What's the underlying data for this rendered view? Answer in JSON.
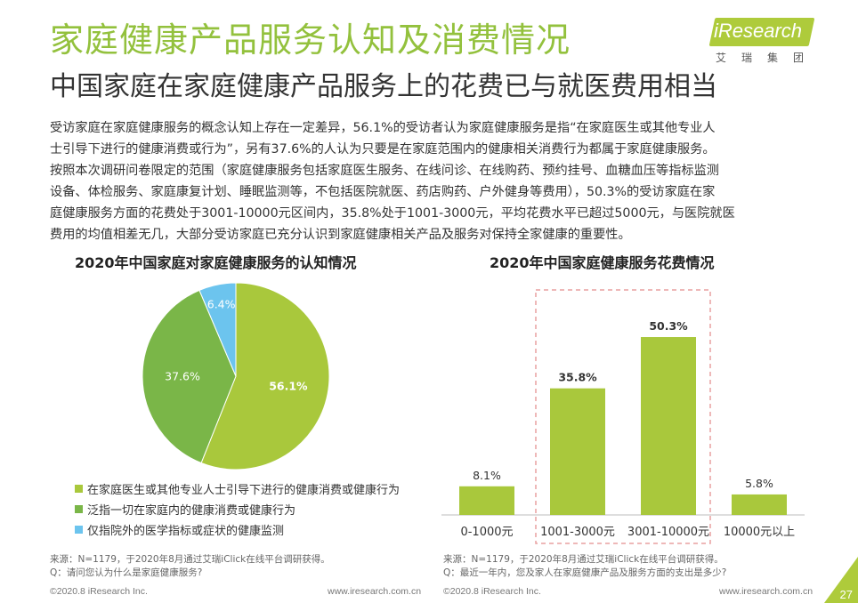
{
  "header": {
    "title": "家庭健康产品服务认知及消费情况",
    "subtitle": "中国家庭在家庭健康产品服务上的花费已与就医费用相当"
  },
  "logo": {
    "text": "iResearch",
    "subtext": "艾瑞集团"
  },
  "body_lines": [
    "受访家庭在家庭健康服务的概念认知上存在一定差异，56.1%的受访者认为家庭健康服务是指“在家庭医生或其他专业人",
    "士引导下进行的健康消费或行为”，另有37.6%的人认为只要是在家庭范围内的健康相关消费行为都属于家庭健康服务。",
    "按照本次调研问卷限定的范围（家庭健康服务包括家庭医生服务、在线问诊、在线购药、预约挂号、血糖血压等指标监测",
    "设备、体检服务、家庭康复计划、睡眠监测等，不包括医院就医、药店购药、户外健身等费用），50.3%的受访家庭在家",
    "庭健康服务方面的花费处于3001-10000元区间内，35.8%处于1001-3000元，平均花费水平已超过5000元，与医院就医",
    "费用的均值相差无几，大部分受访家庭已充分认识到家庭健康相关产品及服务对保持全家健康的重要性。"
  ],
  "chart_data": [
    {
      "type": "pie",
      "title": "2020年中国家庭对家庭健康服务的认知情况",
      "slices": [
        {
          "label": "在家庭医生或其他专业人士引导下进行的健康消费或健康行为",
          "value": 56.1,
          "value_label": "56.1%",
          "color": "#a9c83c"
        },
        {
          "label": "泛指一切在家庭内的健康消费或健康行为",
          "value": 37.6,
          "value_label": "37.6%",
          "color": "#7ab648"
        },
        {
          "label": "仅指院外的医学指标或症状的健康监测",
          "value": 6.4,
          "value_label": "6.4%",
          "color": "#6cc4ee"
        }
      ]
    },
    {
      "type": "bar",
      "title": "2020年中国家庭健康服务花费情况",
      "categories": [
        "0-1000元",
        "1001-3000元",
        "3001-10000元",
        "10000元以上"
      ],
      "values": [
        8.1,
        35.8,
        50.3,
        5.8
      ],
      "value_labels": [
        "8.1%",
        "35.8%",
        "50.3%",
        "5.8%"
      ],
      "unit": "%",
      "bar_color": "#a9c83c",
      "highlight_color": "#e8a0a0",
      "highlighted_categories": [
        "1001-3000元",
        "3001-10000元"
      ]
    }
  ],
  "footnotes": {
    "left_source": "来源：N=1179，于2020年8月通过艾瑞iClick在线平台调研获得。",
    "left_question": "Q：请问您认为什么是家庭健康服务?",
    "right_source": "来源：N=1179，于2020年8月通过艾瑞iClick在线平台调研获得。",
    "right_question": "Q：最近一年内，您及家人在家庭健康产品及服务方面的支出是多少?"
  },
  "footer": {
    "copyright": "©2020.8 iResearch Inc.",
    "website": "www.iresearch.com.cn",
    "page_number": "27"
  }
}
